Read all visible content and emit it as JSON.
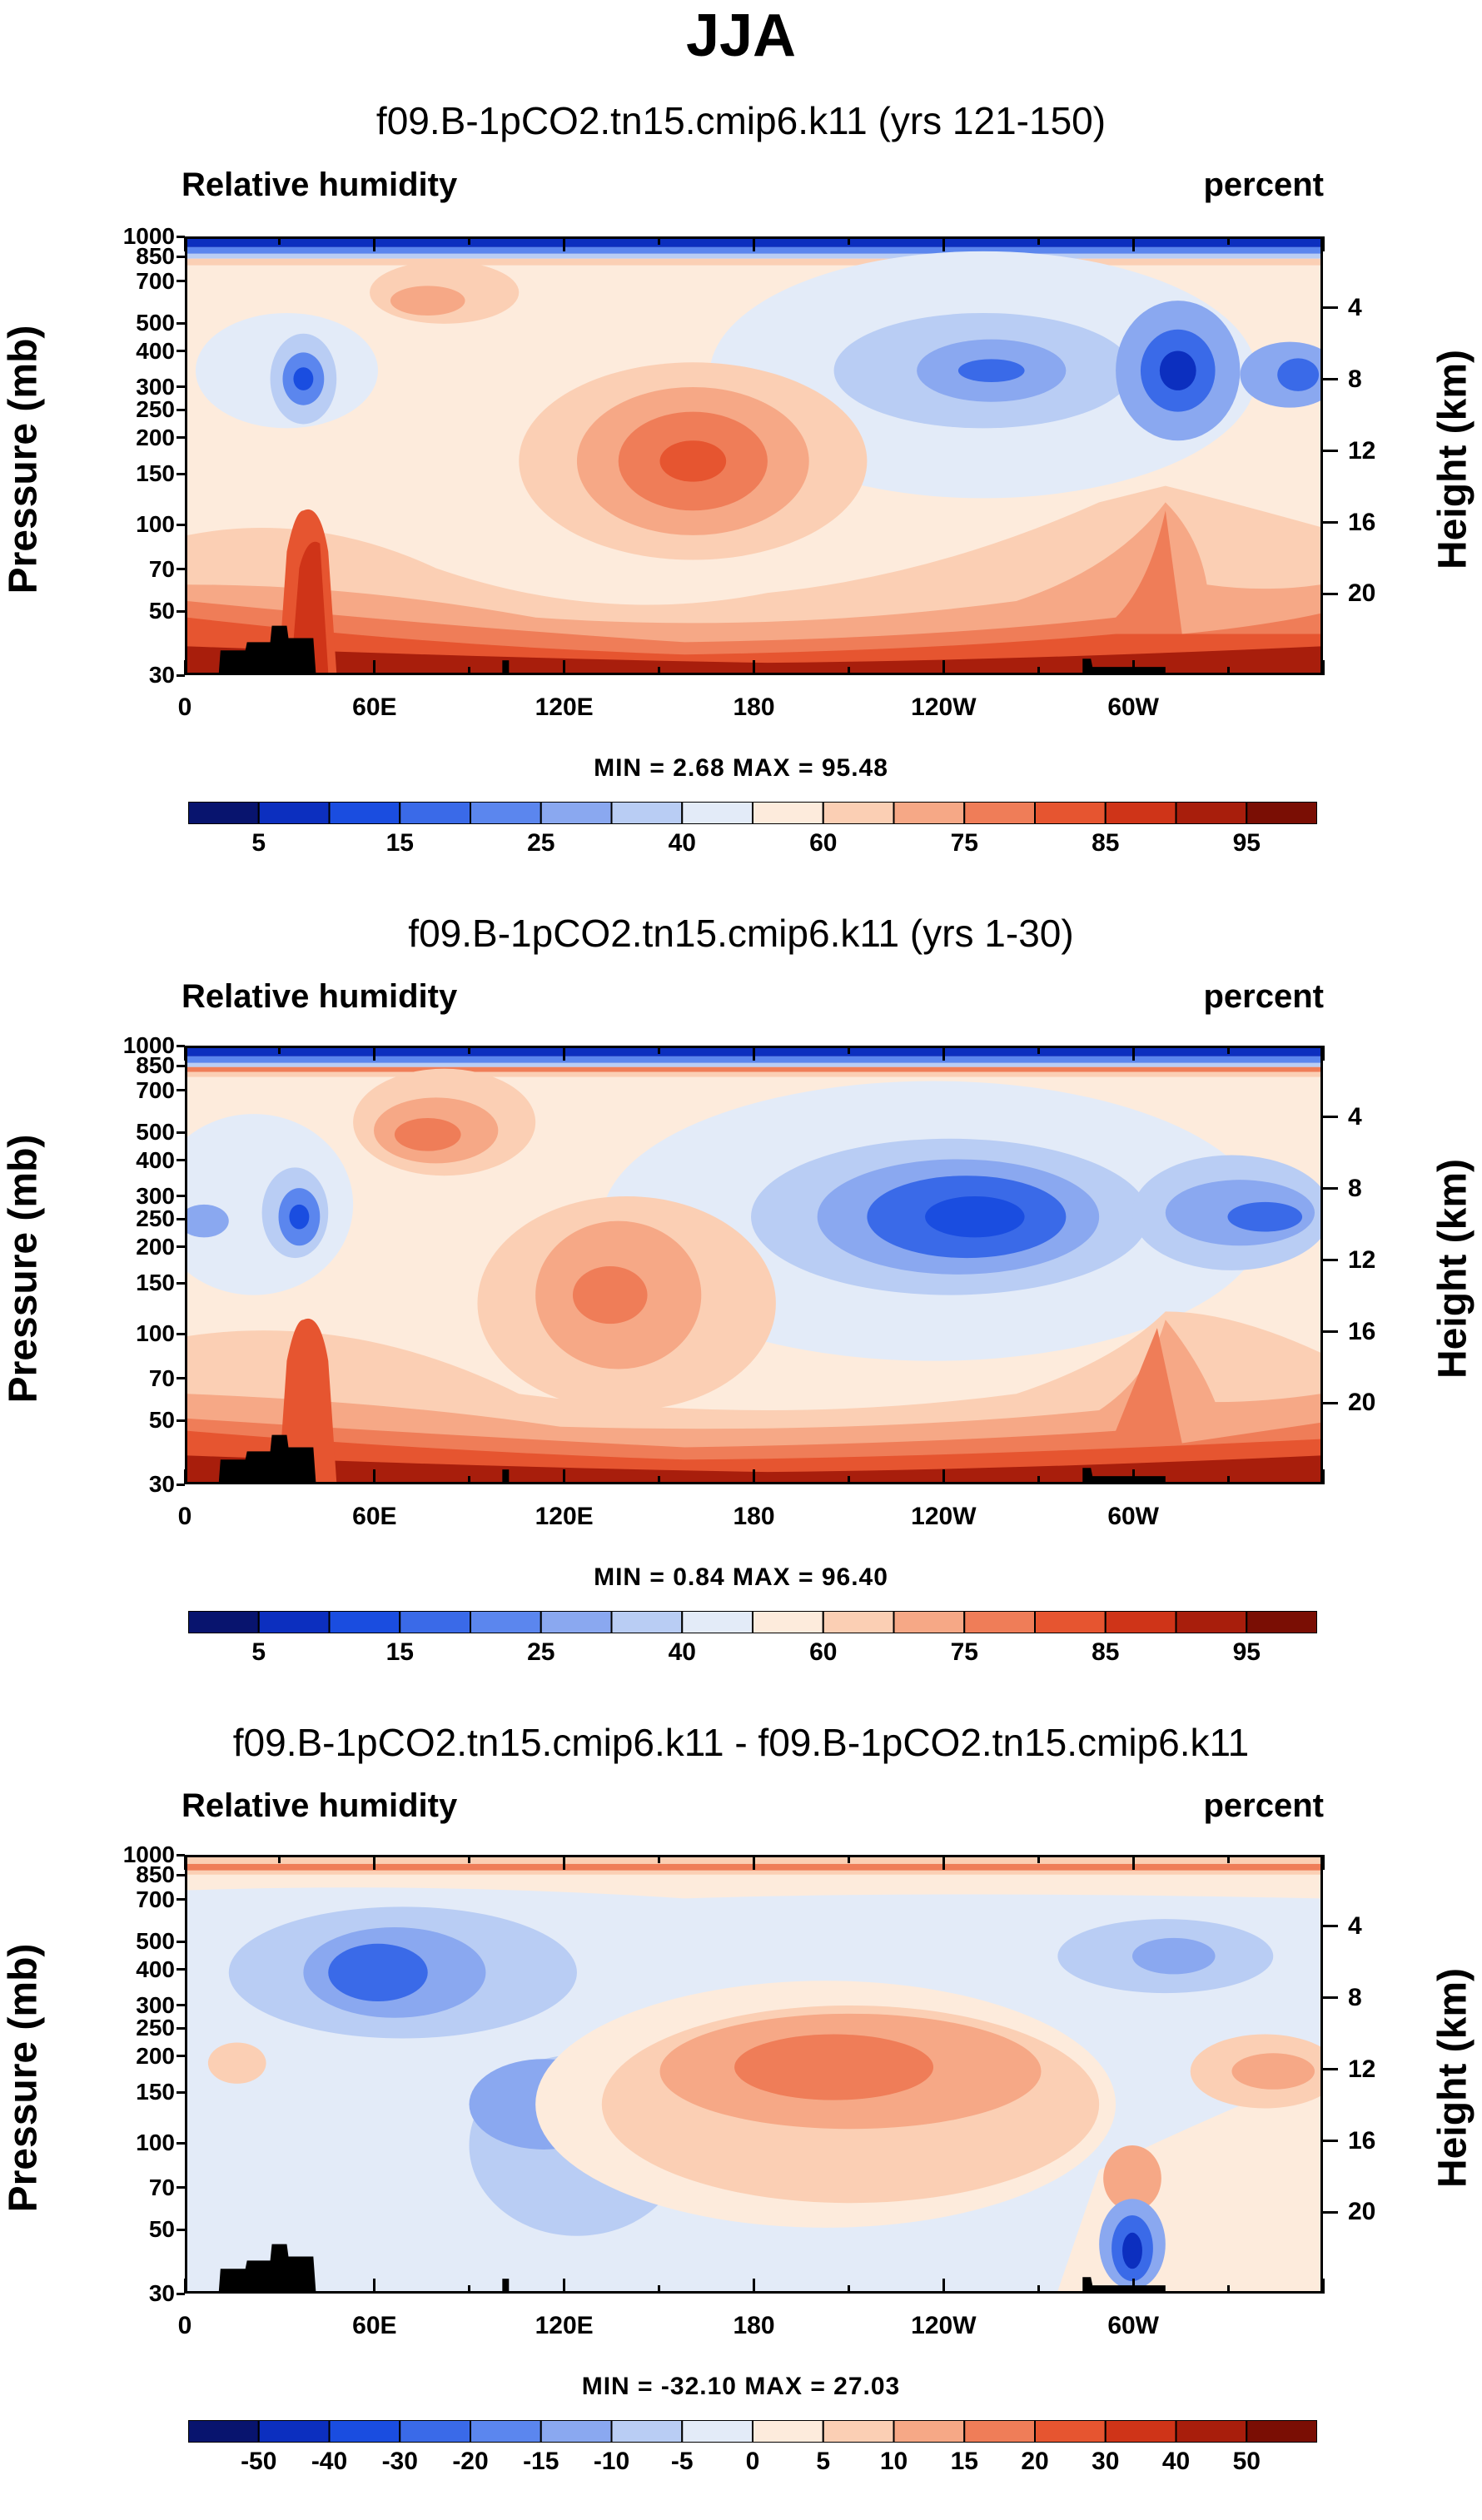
{
  "title": "JJA",
  "variable_label": "Relative humidity",
  "units_label": "percent",
  "y_axis_title": "Pressure (mb)",
  "y_axis_right_title": "Height (km)",
  "pressure_ticks": [
    "30",
    "50",
    "70",
    "100",
    "150",
    "200",
    "250",
    "300",
    "400",
    "500",
    "700",
    "850",
    "1000"
  ],
  "height_ticks": [
    "20",
    "16",
    "12",
    "8",
    "4"
  ],
  "lon_ticks": [
    "0",
    "60E",
    "120E",
    "180",
    "120W",
    "60W"
  ],
  "abs_colorbar_labels": [
    "5",
    "15",
    "25",
    "40",
    "60",
    "75",
    "85",
    "95"
  ],
  "diff_colorbar_labels": [
    "-50",
    "-40",
    "-30",
    "-20",
    "-15",
    "-10",
    "-5",
    "0",
    "5",
    "10",
    "15",
    "20",
    "30",
    "40",
    "50"
  ],
  "colors": {
    "abs_levels": [
      "#08146e",
      "#0c2fbf",
      "#1a4de0",
      "#3a6ae8",
      "#5b86ee",
      "#8aa8f0",
      "#b9cdf4",
      "#e3ebf8",
      "#fdebdc",
      "#fbcfb4",
      "#f6a886",
      "#ef7d58",
      "#e65530",
      "#cf3418",
      "#a81e0c",
      "#7a0e04"
    ],
    "diff_levels": [
      "#08146e",
      "#0c2fbf",
      "#1a4de0",
      "#3a6ae8",
      "#5b86ee",
      "#8aa8f0",
      "#b9cdf4",
      "#e3ebf8",
      "#fdebdc",
      "#fbcfb4",
      "#f6a886",
      "#ef7d58",
      "#e65530",
      "#cf3418",
      "#a81e0c",
      "#7a0e04"
    ],
    "land": "#000000"
  },
  "chart_data": [
    {
      "type": "heatmap",
      "title": "f09.B-1pCO2.tn15.cmip6.k11 (yrs 121-150)",
      "xlabel": "",
      "ylabel": "Pressure (mb)",
      "xlim": [
        0,
        360
      ],
      "ylim_pressure_mb": [
        1000,
        30
      ],
      "min": 2.68,
      "max": 95.48,
      "min_max_label": "MIN =   2.68  MAX =  95.48",
      "colorbar_levels": [
        5,
        10,
        15,
        20,
        25,
        30,
        40,
        50,
        60,
        70,
        75,
        80,
        85,
        90,
        95
      ]
    },
    {
      "type": "heatmap",
      "title": "f09.B-1pCO2.tn15.cmip6.k11 (yrs 1-30)",
      "xlabel": "",
      "ylabel": "Pressure (mb)",
      "xlim": [
        0,
        360
      ],
      "ylim_pressure_mb": [
        1000,
        30
      ],
      "min": 0.84,
      "max": 96.4,
      "min_max_label": "MIN =   0.84  MAX =  96.40",
      "colorbar_levels": [
        5,
        10,
        15,
        20,
        25,
        30,
        40,
        50,
        60,
        70,
        75,
        80,
        85,
        90,
        95
      ]
    },
    {
      "type": "heatmap",
      "title": "f09.B-1pCO2.tn15.cmip6.k11 - f09.B-1pCO2.tn15.cmip6.k11",
      "xlabel": "",
      "ylabel": "Pressure (mb)",
      "xlim": [
        0,
        360
      ],
      "ylim_pressure_mb": [
        1000,
        30
      ],
      "min": -32.1,
      "max": 27.03,
      "min_max_label": "MIN = -32.10  MAX =  27.03",
      "colorbar_levels": [
        -50,
        -40,
        -30,
        -20,
        -15,
        -10,
        -5,
        0,
        5,
        10,
        15,
        20,
        30,
        40,
        50
      ]
    }
  ]
}
